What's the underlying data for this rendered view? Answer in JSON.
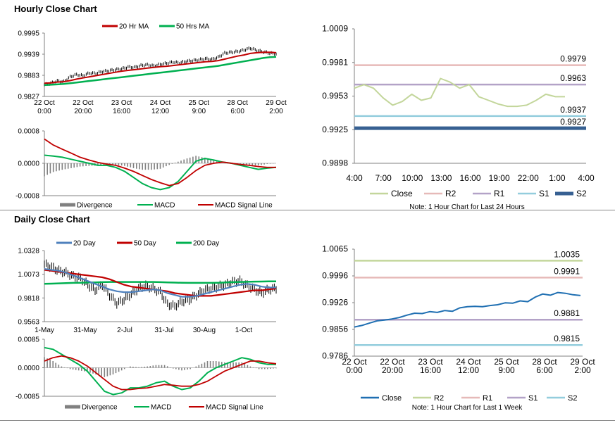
{
  "sections": {
    "hourly_title": "Hourly Close Chart",
    "daily_title": "Daily Close Chart"
  },
  "colors": {
    "ma_short": "#c00000",
    "ma_long": "#00b050",
    "ma_20day": "#4f81bd",
    "price": "#000000",
    "close_light": "#c3d69b",
    "close_blue": "#1f6fb2",
    "r2_hourly": "#e6b9b8",
    "r1_hourly": "#b3a2c7",
    "s1_hourly": "#93cddd",
    "s2_hourly": "#376092",
    "r2_daily": "#c3d69b",
    "r1_daily": "#e6b9b8",
    "s1_daily": "#b3a2c7",
    "s2_daily": "#93cddd",
    "divergence": "#808080"
  },
  "chart_data": [
    {
      "id": "hourly_price",
      "type": "line",
      "legend": [
        "20 Hr MA",
        "50 Hrs MA"
      ],
      "ylim": [
        0.9827,
        0.9995
      ],
      "y_ticks": [
        "0.9995",
        "0.9939",
        "0.9883",
        "0.9827"
      ],
      "x_ticks": [
        [
          "22 Oct",
          "0:00"
        ],
        [
          "22 Oct",
          "20:00"
        ],
        [
          "23 Oct",
          "16:00"
        ],
        [
          "24 Oct",
          "12:00"
        ],
        [
          "25 Oct",
          "9:00"
        ],
        [
          "28 Oct",
          "6:00"
        ],
        [
          "29 Oct",
          "2:00"
        ]
      ],
      "price": [
        0.9858,
        0.9862,
        0.9868,
        0.9866,
        0.9879,
        0.9885,
        0.9882,
        0.9889,
        0.9888,
        0.9893,
        0.9895,
        0.9898,
        0.99,
        0.9905,
        0.9904,
        0.9909,
        0.9911,
        0.9908,
        0.9912,
        0.9915,
        0.9918,
        0.9916,
        0.992,
        0.9922,
        0.9924,
        0.9927,
        0.9925,
        0.9931,
        0.9942,
        0.9944,
        0.9946,
        0.995,
        0.9955,
        0.9949,
        0.9945,
        0.9942,
        0.994
      ],
      "ma20": [
        0.9862,
        0.9863,
        0.9865,
        0.9866,
        0.9869,
        0.9873,
        0.9876,
        0.9879,
        0.9882,
        0.9885,
        0.9888,
        0.9891,
        0.9894,
        0.9896,
        0.9898,
        0.99,
        0.9902,
        0.9904,
        0.9906,
        0.9907,
        0.9909,
        0.9911,
        0.9913,
        0.9915,
        0.9917,
        0.9919,
        0.992,
        0.9922,
        0.9926,
        0.993,
        0.9934,
        0.9937,
        0.9941,
        0.9943,
        0.9944,
        0.9944,
        0.9943
      ],
      "ma50": [
        0.9857,
        0.9858,
        0.9859,
        0.986,
        0.9862,
        0.9864,
        0.9866,
        0.9868,
        0.987,
        0.9872,
        0.9874,
        0.9876,
        0.9878,
        0.988,
        0.9882,
        0.9884,
        0.9886,
        0.9888,
        0.989,
        0.9892,
        0.9894,
        0.9896,
        0.9898,
        0.99,
        0.9902,
        0.9904,
        0.9906,
        0.9908,
        0.9911,
        0.9914,
        0.9917,
        0.992,
        0.9923,
        0.9926,
        0.9929,
        0.9931,
        0.9932
      ]
    },
    {
      "id": "hourly_macd",
      "type": "line",
      "legend": [
        "Divergence",
        "MACD",
        "MACD Signal Line"
      ],
      "ylim": [
        -0.0008,
        0.0008
      ],
      "y_ticks": [
        "0.0008",
        "0.0000",
        "-0.0008"
      ],
      "macd": [
        0.0002,
        0.00018,
        0.00015,
        0.0001,
        5e-05,
        0.0,
        -5e-05,
        -5e-05,
        -0.0001,
        -0.0002,
        -0.00035,
        -0.0005,
        -0.0006,
        -0.00065,
        -0.0006,
        -0.00045,
        -0.0002,
        5e-05,
        0.00012,
        8e-05,
        3e-05,
        0.0,
        -5e-05,
        -0.0001,
        -0.00015,
        -0.00012,
        -0.0001
      ],
      "signal": [
        0.0006,
        0.00045,
        0.00035,
        0.00025,
        0.00015,
        8e-05,
        2e-05,
        -2e-05,
        -5e-05,
        -0.00012,
        -0.0002,
        -0.0003,
        -0.0004,
        -0.00048,
        -0.00055,
        -0.0005,
        -0.00035,
        -0.00018,
        -5e-05,
        0.0,
        3e-05,
        0.0,
        -3e-05,
        -5e-05,
        -8e-05,
        -0.0001,
        -0.0001
      ]
    },
    {
      "id": "hourly_levels",
      "type": "line",
      "ylim": [
        0.9898,
        1.0009
      ],
      "y_ticks": [
        "1.0009",
        "0.9981",
        "0.9953",
        "0.9925",
        "0.9898"
      ],
      "x_ticks": [
        "4:00",
        "7:00",
        "10:00",
        "13:00",
        "16:00",
        "19:00",
        "22:00",
        "1:00",
        "4:00"
      ],
      "legend": [
        "Close",
        "R2",
        "R1",
        "S1",
        "S2"
      ],
      "close": [
        0.996,
        0.9963,
        0.996,
        0.9952,
        0.9946,
        0.9949,
        0.9955,
        0.995,
        0.9952,
        0.9968,
        0.9965,
        0.996,
        0.9963,
        0.9953,
        0.995,
        0.9947,
        0.9945,
        0.9945,
        0.9946,
        0.995,
        0.9955,
        0.9953,
        0.9953
      ],
      "levels": {
        "R2": 0.9979,
        "R1": 0.9963,
        "S1": 0.9937,
        "S2": 0.9927
      },
      "level_labels": [
        "0.9979",
        "0.9963",
        "0.9937",
        "0.9927"
      ],
      "note": "Note: 1 Hour Chart for Last 24 Hours"
    },
    {
      "id": "daily_price",
      "type": "line",
      "legend": [
        "20 Day",
        "50 Day",
        "200 Day"
      ],
      "ylim": [
        0.9563,
        1.0328
      ],
      "y_ticks": [
        "1.0328",
        "1.0073",
        "0.9818",
        "0.9563"
      ],
      "x_ticks": [
        "1-May",
        "31-May",
        "2-Jul",
        "31-Jul",
        "30-Aug",
        "1-Oct"
      ],
      "price": [
        1.018,
        1.015,
        1.011,
        1.009,
        1.005,
        1.003,
        0.996,
        0.99,
        0.996,
        0.985,
        0.976,
        0.98,
        0.986,
        0.992,
        0.995,
        0.992,
        0.988,
        0.975,
        0.973,
        0.978,
        0.98,
        0.985,
        0.99,
        0.992,
        0.994,
        0.996,
        0.999,
        1.0,
        0.995,
        0.991,
        0.987,
        0.991,
        0.992
      ],
      "ma20": [
        1.013,
        1.012,
        1.011,
        1.009,
        1.006,
        1.003,
        1.0,
        0.997,
        0.994,
        0.991,
        0.989,
        0.988,
        0.988,
        0.989,
        0.99,
        0.991,
        0.99,
        0.987,
        0.985,
        0.983,
        0.983,
        0.984,
        0.986,
        0.988,
        0.99,
        0.992,
        0.994,
        0.996,
        0.997,
        0.996,
        0.994,
        0.993,
        0.993
      ],
      "ma50": [
        1.012,
        1.011,
        1.01,
        1.009,
        1.008,
        1.007,
        1.006,
        1.005,
        1.004,
        1.002,
        0.999,
        0.996,
        0.994,
        0.993,
        0.992,
        0.991,
        0.99,
        0.989,
        0.987,
        0.986,
        0.985,
        0.984,
        0.984,
        0.984,
        0.985,
        0.986,
        0.987,
        0.988,
        0.989,
        0.99,
        0.99,
        0.991,
        0.992
      ],
      "ma200": [
        0.997,
        0.9972,
        0.9975,
        0.9978,
        0.998,
        0.9982,
        0.9984,
        0.9986,
        0.9988,
        0.999,
        0.999,
        0.999,
        0.999,
        0.999,
        0.999,
        0.999,
        0.9988,
        0.9985,
        0.9983,
        0.9981,
        0.998,
        0.998,
        0.998,
        0.998,
        0.9982,
        0.9985,
        0.9988,
        0.999,
        0.9992,
        0.9994,
        0.9995,
        0.9996,
        0.9997
      ]
    },
    {
      "id": "daily_macd",
      "type": "line",
      "legend": [
        "Divergence",
        "MACD",
        "MACD Signal Line"
      ],
      "ylim": [
        -0.0085,
        0.0085
      ],
      "y_ticks": [
        "0.0085",
        "0.0000",
        "-0.0085"
      ],
      "macd": [
        0.006,
        0.0055,
        0.004,
        0.0025,
        0.001,
        -0.001,
        -0.004,
        -0.007,
        -0.008,
        -0.0075,
        -0.006,
        -0.006,
        -0.0055,
        -0.0045,
        -0.004,
        -0.0055,
        -0.0065,
        -0.006,
        -0.004,
        -0.0015,
        0.0,
        0.001,
        0.002,
        0.003,
        0.0025,
        0.0015,
        0.001,
        0.001
      ],
      "signal": [
        0.002,
        0.003,
        0.0035,
        0.003,
        0.002,
        0.0005,
        -0.0015,
        -0.0035,
        -0.0055,
        -0.0065,
        -0.0065,
        -0.0062,
        -0.006,
        -0.0055,
        -0.005,
        -0.0052,
        -0.0055,
        -0.0055,
        -0.005,
        -0.004,
        -0.0025,
        -0.001,
        0.0,
        0.001,
        0.002,
        0.002,
        0.0015,
        0.0012
      ]
    },
    {
      "id": "daily_levels",
      "type": "line",
      "ylim": [
        0.9786,
        1.0065
      ],
      "y_ticks": [
        "1.0065",
        "0.9996",
        "0.9926",
        "0.9856",
        "0.9786"
      ],
      "x_ticks": [
        [
          "22 Oct",
          "0:00"
        ],
        [
          "22 Oct",
          "20:00"
        ],
        [
          "23 Oct",
          "16:00"
        ],
        [
          "24 Oct",
          "12:00"
        ],
        [
          "25 Oct",
          "9:00"
        ],
        [
          "28 Oct",
          "6:00"
        ],
        [
          "29 Oct",
          "2:00"
        ]
      ],
      "legend": [
        "Close",
        "R2",
        "R1",
        "S1",
        "S2"
      ],
      "close": [
        0.9862,
        0.9866,
        0.9872,
        0.9878,
        0.988,
        0.9883,
        0.9887,
        0.9893,
        0.9898,
        0.9897,
        0.9902,
        0.99,
        0.9905,
        0.9903,
        0.9912,
        0.9915,
        0.9916,
        0.9915,
        0.9918,
        0.992,
        0.9925,
        0.9924,
        0.993,
        0.9928,
        0.994,
        0.9948,
        0.9945,
        0.9952,
        0.995,
        0.9946,
        0.9944
      ],
      "levels": {
        "R2": 1.0035,
        "R1": 0.9991,
        "S1": 0.9881,
        "S2": 0.9815
      },
      "level_labels": [
        "1.0035",
        "0.9991",
        "0.9881",
        "0.9815"
      ],
      "note": "Note: 1 Hour Chart for Last 1 Week"
    }
  ]
}
